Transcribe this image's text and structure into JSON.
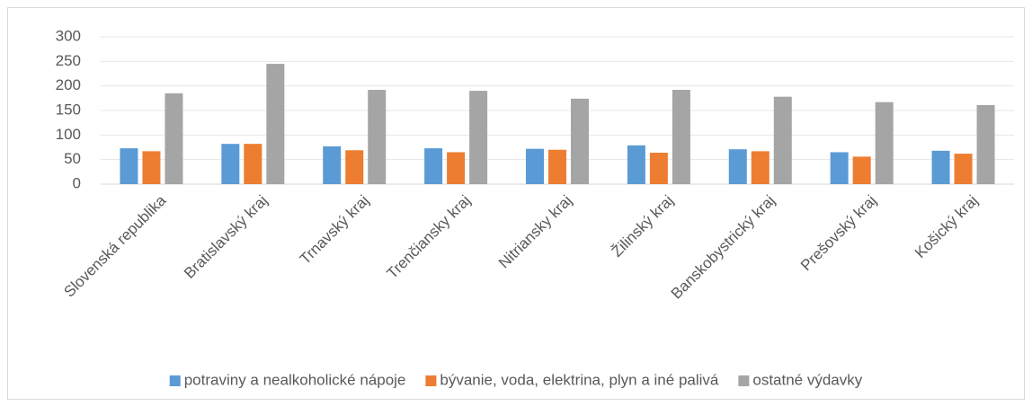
{
  "chart_data": {
    "type": "bar",
    "categories": [
      "Slovenská republika",
      "Bratislavský kraj",
      "Trnavský kraj",
      "Trenčiansky kraj",
      "Nitriansky kraj",
      "Žilinský kraj",
      "Banskobystrický kraj",
      "Prešovský kraj",
      "Košický kraj"
    ],
    "series": [
      {
        "name": "potraviny a nealkoholické nápoje",
        "color": "#5b9bd5",
        "values": [
          73,
          82,
          77,
          73,
          72,
          79,
          71,
          65,
          68
        ]
      },
      {
        "name": "bývanie, voda, elektrina, plyn a iné palivá",
        "color": "#ed7d31",
        "values": [
          67,
          82,
          69,
          65,
          70,
          64,
          67,
          56,
          62
        ]
      },
      {
        "name": "ostatné výdavky",
        "color": "#a5a5a5",
        "values": [
          185,
          245,
          192,
          190,
          174,
          192,
          178,
          167,
          161
        ]
      }
    ],
    "ylim": [
      0,
      300
    ],
    "yticks": [
      0,
      50,
      100,
      150,
      200,
      250,
      300
    ],
    "grid": true,
    "legend": "bottom"
  }
}
